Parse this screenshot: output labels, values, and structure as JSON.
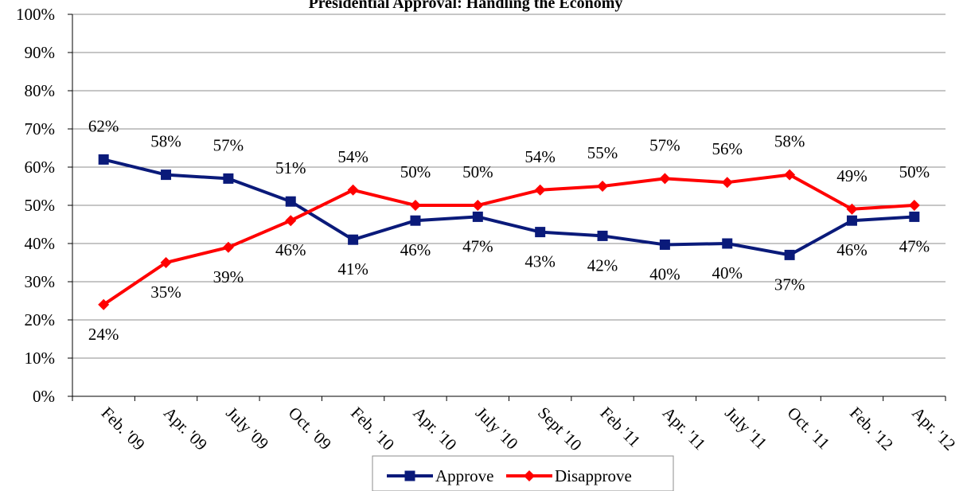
{
  "chart_data": {
    "type": "line",
    "title": "Presidential Approval:  Handling the Economy",
    "xlabel": "",
    "ylabel": "",
    "ylim": [
      0,
      100
    ],
    "yticks": [
      "0%",
      "10%",
      "20%",
      "30%",
      "40%",
      "50%",
      "60%",
      "70%",
      "80%",
      "90%",
      "100%"
    ],
    "categories": [
      "Feb. '09",
      "Apr. '09",
      "July '09",
      "Oct. '09",
      "Feb. '10",
      "Apr. '10",
      "July '10",
      "Sept '10",
      "Feb '11",
      "Apr. '11",
      "July '11",
      "Oct. '11",
      "Feb. '12",
      "Apr. '12"
    ],
    "grid": true,
    "legend_position": "bottom",
    "series": [
      {
        "name": "Approve",
        "color": "#0a1a7a",
        "marker": "square",
        "values": [
          62,
          58,
          57,
          51,
          41,
          46,
          47,
          43,
          42,
          40,
          40,
          37,
          46,
          47
        ],
        "plot_values": [
          62,
          58,
          57,
          51,
          41,
          46,
          47,
          43,
          42,
          39.7,
          40,
          37,
          46,
          47
        ],
        "labels": [
          "62%",
          "58%",
          "57%",
          "51%",
          "41%",
          "46%",
          "47%",
          "43%",
          "42%",
          "40%",
          "40%",
          "37%",
          "46%",
          "47%"
        ]
      },
      {
        "name": "Disapprove",
        "color": "#ff0000",
        "marker": "diamond",
        "values": [
          24,
          35,
          39,
          46,
          54,
          50,
          50,
          54,
          55,
          57,
          56,
          58,
          49,
          50
        ],
        "labels": [
          "24%",
          "35%",
          "39%",
          "46%",
          "54%",
          "50%",
          "50%",
          "54%",
          "55%",
          "57%",
          "56%",
          "58%",
          "49%",
          "50%"
        ]
      }
    ]
  }
}
